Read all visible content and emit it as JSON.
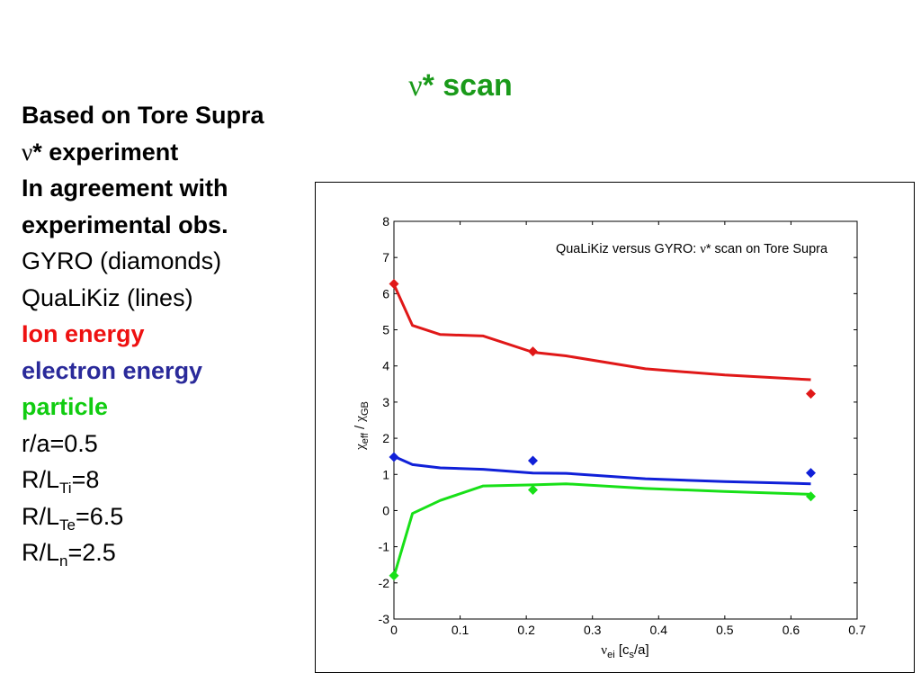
{
  "slide": {
    "title_symbol": "ν",
    "title_text": "* scan",
    "title_color": "#1a9a1a"
  },
  "notes": {
    "line1": "Based on Tore Supra",
    "line2_symbol": "ν",
    "line2_text": "* experiment",
    "line3": "In agreement with",
    "line4": "experimental obs.",
    "line5": "GYRO (diamonds)",
    "line6": "QuaLiKiz (lines)",
    "ion": "Ion energy",
    "ion_color": "#ee1111",
    "electron": "electron energy",
    "electron_color": "#2a2a9a",
    "particle": "particle",
    "particle_color": "#11cc11",
    "ra": "r/a=0.5",
    "rlti_pre": "R/L",
    "rlti_sub": "Ti",
    "rlti_val": "=8",
    "rlte_pre": "R/L",
    "rlte_sub": "Te",
    "rlte_val": "=6.5",
    "rln_pre": "R/L",
    "rln_sub": "n",
    "rln_val": "=2.5"
  },
  "chart_data": {
    "type": "line",
    "title_prefix": "QuaLiKiz versus GYRO: ",
    "title_symbol": "ν",
    "title_suffix": "* scan on Tore Supra",
    "xlabel_symbol": "ν",
    "xlabel_sub": "ei",
    "xlabel_mid": " [c",
    "xlabel_sub2": "s",
    "xlabel_end": "/a]",
    "ylabel_chi": "χ",
    "ylabel_sub1": "eff",
    "ylabel_slash": " / ",
    "ylabel_sub2": "GB",
    "xlim": [
      0,
      0.7
    ],
    "ylim": [
      -3,
      8
    ],
    "xticks": [
      0,
      0.1,
      0.2,
      0.3,
      0.4,
      0.5,
      0.6,
      0.7
    ],
    "xtick_labels": [
      "0",
      "0.1",
      "0.2",
      "0.3",
      "0.4",
      "0.5",
      "0.6",
      "0.7"
    ],
    "yticks": [
      -3,
      -2,
      -1,
      0,
      1,
      2,
      3,
      4,
      5,
      6,
      7,
      8
    ],
    "ytick_labels": [
      "-3",
      "-2",
      "-1",
      "0",
      "1",
      "2",
      "3",
      "4",
      "5",
      "6",
      "7",
      "8"
    ],
    "grid": false,
    "lines": [
      {
        "color": "#e01818",
        "x": [
          0,
          0.028,
          0.07,
          0.135,
          0.21,
          0.26,
          0.38,
          0.5,
          0.63
        ],
        "y": [
          6.25,
          5.12,
          4.87,
          4.83,
          4.38,
          4.28,
          3.92,
          3.75,
          3.62
        ]
      },
      {
        "color": "#1020d8",
        "x": [
          0,
          0.028,
          0.07,
          0.135,
          0.21,
          0.26,
          0.38,
          0.5,
          0.63
        ],
        "y": [
          1.5,
          1.27,
          1.18,
          1.14,
          1.04,
          1.03,
          0.88,
          0.8,
          0.74
        ]
      },
      {
        "color": "#18e018",
        "x": [
          0,
          0.028,
          0.07,
          0.135,
          0.21,
          0.26,
          0.38,
          0.5,
          0.63
        ],
        "y": [
          -1.82,
          -0.08,
          0.28,
          0.68,
          0.71,
          0.74,
          0.61,
          0.53,
          0.45
        ]
      }
    ],
    "diamonds": [
      {
        "color": "#e01818",
        "x": [
          0,
          0.21,
          0.63
        ],
        "y": [
          6.27,
          4.4,
          3.23
        ]
      },
      {
        "color": "#1020d8",
        "x": [
          0,
          0.21,
          0.63
        ],
        "y": [
          1.48,
          1.38,
          1.04
        ]
      },
      {
        "color": "#18e018",
        "x": [
          0,
          0.21,
          0.63
        ],
        "y": [
          -1.8,
          0.57,
          0.39
        ]
      }
    ]
  }
}
